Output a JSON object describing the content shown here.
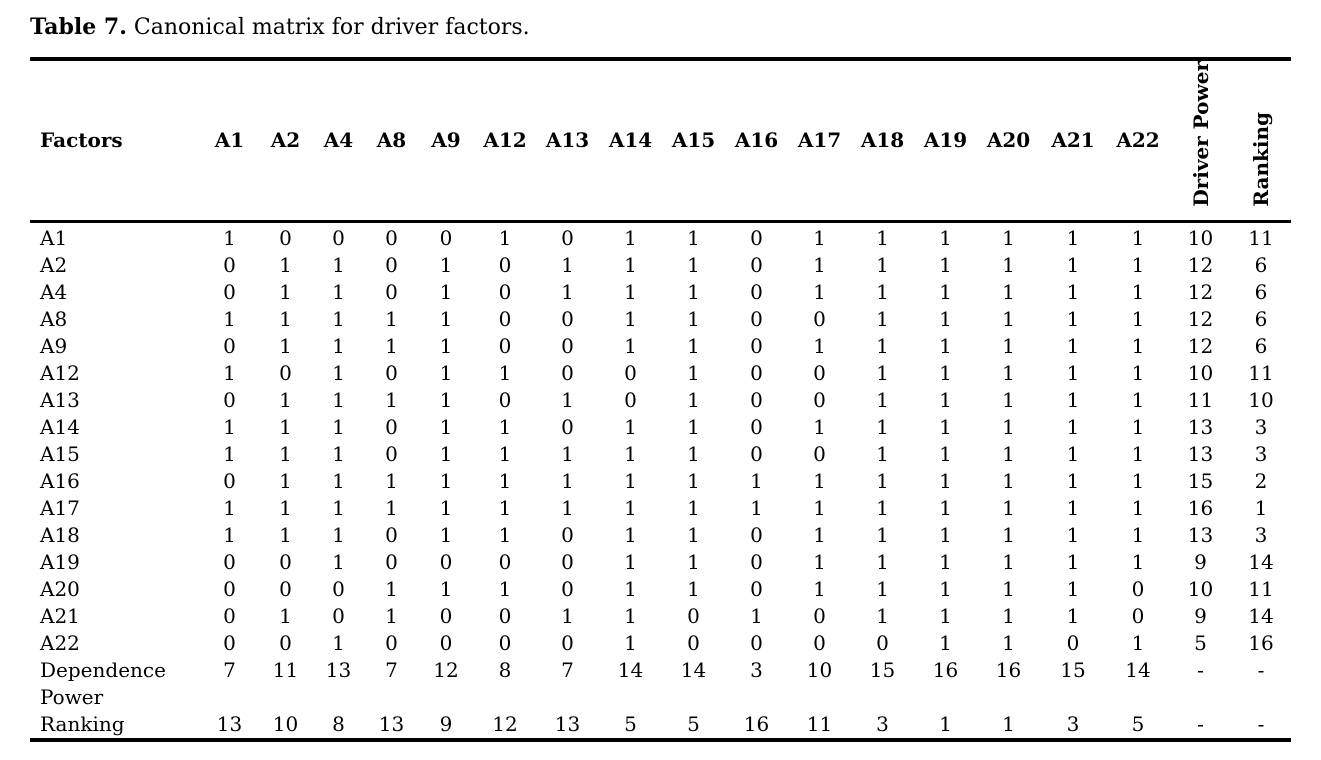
{
  "title": {
    "label": "Table 7.",
    "text": " Canonical matrix for driver factors."
  },
  "table": {
    "row_header": "Factors",
    "columns": [
      "A1",
      "A2",
      "A4",
      "A8",
      "A9",
      "A12",
      "A13",
      "A14",
      "A15",
      "A16",
      "A17",
      "A18",
      "A19",
      "A20",
      "A21",
      "A22"
    ],
    "rotated_columns": [
      "Driver Power",
      "Ranking"
    ],
    "rows": [
      {
        "label": "A1",
        "values": [
          1,
          0,
          0,
          0,
          0,
          1,
          0,
          1,
          1,
          0,
          1,
          1,
          1,
          1,
          1,
          1
        ],
        "driver_power": "10",
        "ranking": "11"
      },
      {
        "label": "A2",
        "values": [
          0,
          1,
          1,
          0,
          1,
          0,
          1,
          1,
          1,
          0,
          1,
          1,
          1,
          1,
          1,
          1
        ],
        "driver_power": "12",
        "ranking": "6"
      },
      {
        "label": "A4",
        "values": [
          0,
          1,
          1,
          0,
          1,
          0,
          1,
          1,
          1,
          0,
          1,
          1,
          1,
          1,
          1,
          1
        ],
        "driver_power": "12",
        "ranking": "6"
      },
      {
        "label": "A8",
        "values": [
          1,
          1,
          1,
          1,
          1,
          0,
          0,
          1,
          1,
          0,
          0,
          1,
          1,
          1,
          1,
          1
        ],
        "driver_power": "12",
        "ranking": "6"
      },
      {
        "label": "A9",
        "values": [
          0,
          1,
          1,
          1,
          1,
          0,
          0,
          1,
          1,
          0,
          1,
          1,
          1,
          1,
          1,
          1
        ],
        "driver_power": "12",
        "ranking": "6"
      },
      {
        "label": "A12",
        "values": [
          1,
          0,
          1,
          0,
          1,
          1,
          0,
          0,
          1,
          0,
          0,
          1,
          1,
          1,
          1,
          1
        ],
        "driver_power": "10",
        "ranking": "11"
      },
      {
        "label": "A13",
        "values": [
          0,
          1,
          1,
          1,
          1,
          0,
          1,
          0,
          1,
          0,
          0,
          1,
          1,
          1,
          1,
          1
        ],
        "driver_power": "11",
        "ranking": "10"
      },
      {
        "label": "A14",
        "values": [
          1,
          1,
          1,
          0,
          1,
          1,
          0,
          1,
          1,
          0,
          1,
          1,
          1,
          1,
          1,
          1
        ],
        "driver_power": "13",
        "ranking": "3"
      },
      {
        "label": "A15",
        "values": [
          1,
          1,
          1,
          0,
          1,
          1,
          1,
          1,
          1,
          0,
          0,
          1,
          1,
          1,
          1,
          1
        ],
        "driver_power": "13",
        "ranking": "3"
      },
      {
        "label": "A16",
        "values": [
          0,
          1,
          1,
          1,
          1,
          1,
          1,
          1,
          1,
          1,
          1,
          1,
          1,
          1,
          1,
          1
        ],
        "driver_power": "15",
        "ranking": "2"
      },
      {
        "label": "A17",
        "values": [
          1,
          1,
          1,
          1,
          1,
          1,
          1,
          1,
          1,
          1,
          1,
          1,
          1,
          1,
          1,
          1
        ],
        "driver_power": "16",
        "ranking": "1"
      },
      {
        "label": "A18",
        "values": [
          1,
          1,
          1,
          0,
          1,
          1,
          0,
          1,
          1,
          0,
          1,
          1,
          1,
          1,
          1,
          1
        ],
        "driver_power": "13",
        "ranking": "3"
      },
      {
        "label": "A19",
        "values": [
          0,
          0,
          1,
          0,
          0,
          0,
          0,
          1,
          1,
          0,
          1,
          1,
          1,
          1,
          1,
          1
        ],
        "driver_power": "9",
        "ranking": "14"
      },
      {
        "label": "A20",
        "values": [
          0,
          0,
          0,
          1,
          1,
          1,
          0,
          1,
          1,
          0,
          1,
          1,
          1,
          1,
          1,
          0
        ],
        "driver_power": "10",
        "ranking": "11"
      },
      {
        "label": "A21",
        "values": [
          0,
          1,
          0,
          1,
          0,
          0,
          1,
          1,
          0,
          1,
          0,
          1,
          1,
          1,
          1,
          0
        ],
        "driver_power": "9",
        "ranking": "14"
      },
      {
        "label": "A22",
        "values": [
          0,
          0,
          1,
          0,
          0,
          0,
          0,
          1,
          0,
          0,
          0,
          0,
          1,
          1,
          0,
          1
        ],
        "driver_power": "5",
        "ranking": "16"
      }
    ],
    "footer_rows": [
      {
        "label": "Dependence Power",
        "values": [
          7,
          11,
          13,
          7,
          12,
          8,
          7,
          14,
          14,
          3,
          10,
          15,
          16,
          16,
          15,
          14
        ],
        "driver_power": "-",
        "ranking": "-"
      },
      {
        "label": "Ranking",
        "values": [
          13,
          10,
          8,
          13,
          9,
          12,
          13,
          5,
          5,
          16,
          11,
          3,
          1,
          1,
          3,
          5
        ],
        "driver_power": "-",
        "ranking": "-"
      }
    ]
  }
}
